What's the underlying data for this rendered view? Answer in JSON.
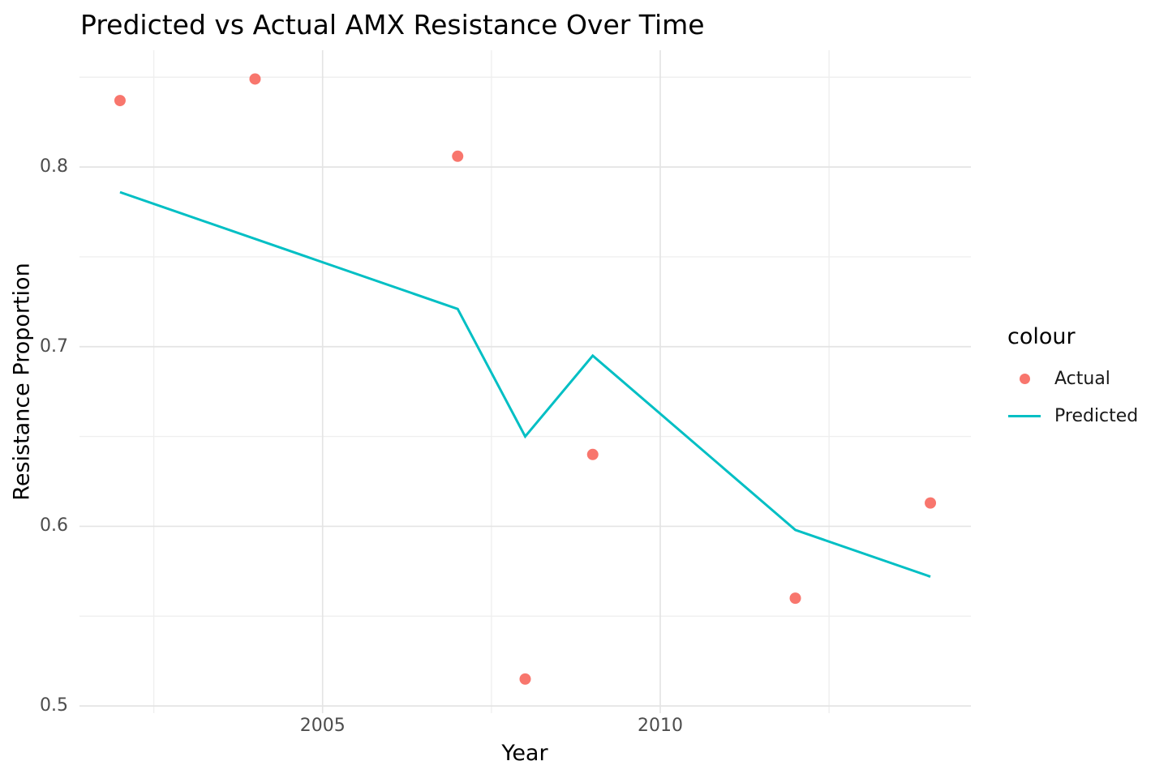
{
  "title": "Predicted vs Actual AMX Resistance Over Time",
  "chart_data": {
    "type": "line",
    "title": "Predicted vs Actual AMX Resistance Over Time",
    "xlabel": "Year",
    "ylabel": "Resistance Proportion",
    "xlim": [
      2001.4,
      2014.6
    ],
    "ylim": [
      0.496,
      0.865
    ],
    "x_ticks": [
      2005,
      2010
    ],
    "x_tick_labels": [
      "2005",
      "2010"
    ],
    "x_minor_ticks": [
      2002.5,
      2007.5,
      2012.5
    ],
    "y_ticks": [
      0.5,
      0.6,
      0.7,
      0.8
    ],
    "y_tick_labels": [
      "0.5",
      "0.6",
      "0.7",
      "0.8"
    ],
    "y_minor_ticks": [
      0.55,
      0.65,
      0.75,
      0.85
    ],
    "grid": true,
    "legend_title": "colour",
    "legend_position": "right",
    "series": [
      {
        "name": "Actual",
        "type": "scatter",
        "color": "#F8766D",
        "x": [
          2002,
          2004,
          2007,
          2008,
          2009,
          2012,
          2014
        ],
        "y": [
          0.837,
          0.849,
          0.806,
          0.515,
          0.64,
          0.56,
          0.613
        ]
      },
      {
        "name": "Predicted",
        "type": "line",
        "color": "#00BFC4",
        "x": [
          2002,
          2007,
          2008,
          2009,
          2012,
          2014
        ],
        "y": [
          0.786,
          0.721,
          0.65,
          0.695,
          0.598,
          0.572
        ]
      }
    ]
  },
  "colors": {
    "actual": "#F8766D",
    "predicted": "#00BFC4",
    "grid_major": "#E4E4E4",
    "grid_minor": "#EFEFEF",
    "tick_text": "#4d4d4d",
    "background": "#ffffff"
  }
}
